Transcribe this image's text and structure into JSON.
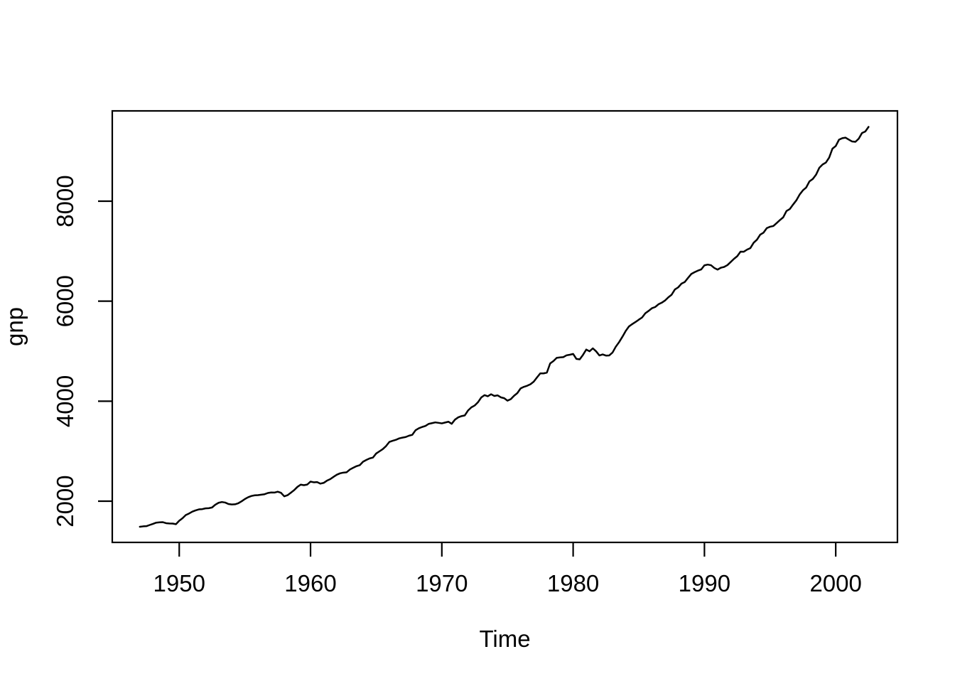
{
  "chart_data": {
    "type": "line",
    "title": "",
    "xlabel": "Time",
    "ylabel": "gnp",
    "series_name": "gnp",
    "x_start": 1947.0,
    "x_step": 0.25,
    "x_end": 2002.5,
    "xlim": [
      1944.9,
      2004.7
    ],
    "ylim": [
      1176,
      9805
    ],
    "x_ticks": [
      1950,
      1960,
      1970,
      1980,
      1990,
      2000
    ],
    "y_ticks": [
      2000,
      4000,
      6000,
      8000
    ],
    "grid": false,
    "legend": false,
    "line_color": "#000000",
    "axis_color": "#000000",
    "background": "#ffffff",
    "values": [
      1488.9,
      1496.9,
      1500.5,
      1524.2,
      1546.7,
      1571.1,
      1577.4,
      1580.3,
      1560.0,
      1554.1,
      1552.3,
      1540.0,
      1610.2,
      1658.8,
      1723.1,
      1753.9,
      1791.4,
      1816.1,
      1836.7,
      1841.3,
      1857.0,
      1860.4,
      1874.3,
      1930.8,
      1968.4,
      1983.6,
      1972.9,
      1944.1,
      1935.2,
      1938.3,
      1959.6,
      1998.1,
      2043.5,
      2079.4,
      2104.2,
      2118.0,
      2121.3,
      2130.7,
      2139.4,
      2163.9,
      2174.5,
      2172.3,
      2190.1,
      2167.8,
      2097.2,
      2119.9,
      2170.1,
      2220.3,
      2285.7,
      2331.2,
      2320.4,
      2332.7,
      2391.7,
      2377.8,
      2382.1,
      2351.4,
      2366.2,
      2410.4,
      2441.3,
      2486.9,
      2528.9,
      2557.3,
      2571.5,
      2578.4,
      2634.1,
      2668.5,
      2700.2,
      2720.4,
      2789.9,
      2824.8,
      2855.2,
      2871.6,
      2953.6,
      2997.8,
      3040.7,
      3101.8,
      3184.2,
      3207.7,
      3227.1,
      3255.9,
      3271.3,
      3283.4,
      3310.2,
      3327.4,
      3419.2,
      3458.7,
      3484.3,
      3504.1,
      3546.4,
      3561.2,
      3575.9,
      3567.0,
      3556.3,
      3573.1,
      3589.4,
      3547.6,
      3630.9,
      3676.8,
      3701.5,
      3715.7,
      3815.2,
      3877.0,
      3913.1,
      3977.6,
      4073.7,
      4120.8,
      4098.9,
      4138.8,
      4104.1,
      4116.4,
      4076.3,
      4060.2,
      4011.0,
      4039.9,
      4108.3,
      4161.2,
      4255.1,
      4286.7,
      4308.0,
      4338.7,
      4390.1,
      4475.6,
      4556.4,
      4555.8,
      4571.7,
      4755.0,
      4803.3,
      4867.1,
      4875.6,
      4880.8,
      4917.3,
      4929.0,
      4945.1,
      4845.2,
      4836.4,
      4926.2,
      5032.5,
      4997.3,
      5056.8,
      4997.1,
      4914.3,
      4935.5,
      4912.1,
      4915.6,
      4972.4,
      5089.8,
      5180.4,
      5286.8,
      5402.3,
      5493.8,
      5541.3,
      5583.1,
      5629.7,
      5673.8,
      5758.6,
      5806.0,
      5858.9,
      5883.3,
      5937.9,
      5969.5,
      6013.3,
      6077.2,
      6128.1,
      6234.4,
      6275.9,
      6349.8,
      6382.3,
      6465.2,
      6543.8,
      6579.4,
      6610.6,
      6633.5,
      6716.3,
      6731.7,
      6719.4,
      6664.2,
      6631.4,
      6668.5,
      6684.9,
      6720.9,
      6783.3,
      6846.8,
      6899.7,
      6990.6,
      6988.7,
      7031.2,
      7062.0,
      7168.7,
      7229.4,
      7330.2,
      7370.2,
      7461.1,
      7488.7,
      7503.3,
      7561.4,
      7621.9,
      7676.4,
      7802.9,
      7841.9,
      7931.3,
      8016.4,
      8131.9,
      8216.6,
      8272.9,
      8396.3,
      8442.9,
      8528.5,
      8667.9,
      8733.5,
      8771.2,
      8871.5,
      9049.9,
      9102.5,
      9229.4,
      9260.1,
      9270.0,
      9229.9,
      9193.1,
      9186.4,
      9248.8,
      9363.2,
      9392.4,
      9485.6
    ]
  }
}
